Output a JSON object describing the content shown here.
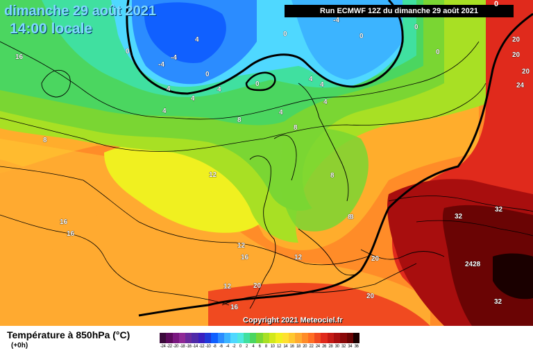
{
  "header": {
    "date": "dimanche 29 août 2021",
    "time": "14:00 locale",
    "run": "Run ECMWF 12Z du dimanche 29 août 2021",
    "top_tag": "0"
  },
  "footer": {
    "copyright": "Copyright 2021 Meteociel.fr",
    "variable": "Température à 850hPa (°C)",
    "lead": "(+0h)"
  },
  "legend": {
    "labels": [
      "-24",
      "-22",
      "-20",
      "-18",
      "-16",
      "-14",
      "-12",
      "-10",
      "-8",
      "-6",
      "-4",
      "-2",
      "0",
      "2",
      "4",
      "6",
      "8",
      "10",
      "12",
      "14",
      "16",
      "18",
      "20",
      "22",
      "24",
      "26",
      "28",
      "30",
      "32",
      "34",
      "36"
    ],
    "colors": [
      "#3b0a3b",
      "#5c0a5c",
      "#7a1780",
      "#8f2a96",
      "#6a2a9c",
      "#4f2aa8",
      "#3a1fbf",
      "#2038d8",
      "#1060ff",
      "#2b8cff",
      "#3cb4ff",
      "#4fd8ff",
      "#4fe8e0",
      "#40e0a0",
      "#4bd660",
      "#7ad633",
      "#a8e024",
      "#d2e81c",
      "#f0f020",
      "#ffe030",
      "#ffc830",
      "#ffaa30",
      "#ff8c28",
      "#ff6e24",
      "#f04a20",
      "#e02a1c",
      "#c41a14",
      "#a80e0e",
      "#8a0808",
      "#6a0404",
      "#1a0000"
    ]
  },
  "map_labels": [
    {
      "text": "16"
    },
    {
      "text": "0"
    },
    {
      "text": "4"
    },
    {
      "text": "-4"
    },
    {
      "text": "-4"
    },
    {
      "text": "4"
    },
    {
      "text": "4"
    },
    {
      "text": "0"
    },
    {
      "text": "0"
    },
    {
      "text": "-4"
    },
    {
      "text": "0"
    },
    {
      "text": "0"
    },
    {
      "text": "0"
    },
    {
      "text": "0"
    },
    {
      "text": "4"
    },
    {
      "text": "4"
    },
    {
      "text": "4"
    },
    {
      "text": "4"
    },
    {
      "text": "4"
    },
    {
      "text": "4"
    },
    {
      "text": "8"
    },
    {
      "text": "8"
    },
    {
      "text": "8"
    },
    {
      "text": "8"
    },
    {
      "text": "12"
    },
    {
      "text": "8"
    },
    {
      "text": "8"
    },
    {
      "text": "16"
    },
    {
      "text": "16"
    },
    {
      "text": "12"
    },
    {
      "text": "12"
    },
    {
      "text": "16"
    },
    {
      "text": "12"
    },
    {
      "text": "20"
    },
    {
      "text": "16"
    },
    {
      "text": "20"
    },
    {
      "text": "20"
    },
    {
      "text": "2428"
    },
    {
      "text": "32"
    },
    {
      "text": "32"
    },
    {
      "text": "32"
    },
    {
      "text": "20"
    },
    {
      "text": "20"
    },
    {
      "text": "20"
    },
    {
      "text": "24"
    }
  ]
}
